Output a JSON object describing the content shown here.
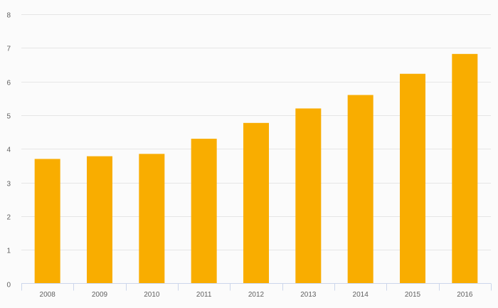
{
  "chart_data": {
    "type": "bar",
    "title": "",
    "xlabel": "",
    "ylabel": "",
    "categories": [
      "2008",
      "2009",
      "2010",
      "2011",
      "2012",
      "2013",
      "2014",
      "2015",
      "2016"
    ],
    "values": [
      3.7,
      3.78,
      3.85,
      4.3,
      4.77,
      5.2,
      5.6,
      6.23,
      6.82
    ],
    "ylim": [
      0,
      8
    ],
    "yticks": [
      "0",
      "1",
      "2",
      "3",
      "4",
      "5",
      "6",
      "7",
      "8"
    ],
    "grid": true,
    "legend": "none",
    "colors": {
      "bar": "#f9ad00",
      "grid": "#e6e6e6",
      "axis": "#ccd6eb",
      "label": "#606060",
      "background": "#fbfbfb"
    }
  }
}
